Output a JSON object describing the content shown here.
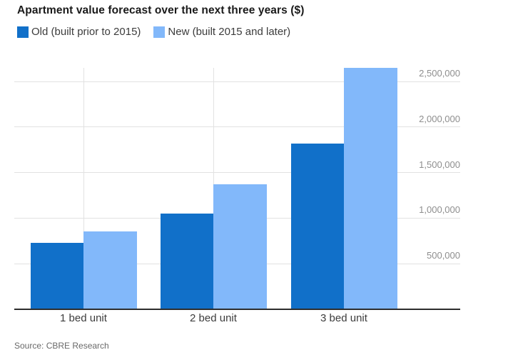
{
  "chart_data": {
    "type": "bar",
    "title": "Apartment value forecast over the next three years ($)",
    "source": "Source: CBRE Research",
    "categories": [
      "1 bed unit",
      "2 bed unit",
      "3 bed unit"
    ],
    "series": [
      {
        "name": "Old (built prior to 2015)",
        "color": "#1170c9",
        "values": [
          730000,
          1050000,
          1820000
        ]
      },
      {
        "name": "New (built 2015 and later)",
        "color": "#82b8fa",
        "values": [
          855000,
          1375000,
          2650000
        ]
      }
    ],
    "yticks": [
      {
        "value": 500000,
        "label": "500,000"
      },
      {
        "value": 1000000,
        "label": "1,000,000"
      },
      {
        "value": 1500000,
        "label": "1,500,000"
      },
      {
        "value": 2000000,
        "label": "2,000,000"
      },
      {
        "value": 2500000,
        "label": "2,500,000"
      }
    ],
    "ylim": [
      0,
      2650000
    ],
    "ylabel": "",
    "xlabel": "",
    "grid": true,
    "legend_position": "top-left",
    "y_axis_side": "right",
    "colors": {
      "gridline": "#e2e2e2",
      "axis_line": "#2d2d2d",
      "y_tick_text": "#8e8e8e",
      "category_text": "#3c3c3c",
      "title_text": "#1a1a1a",
      "source_text": "#696969"
    }
  }
}
